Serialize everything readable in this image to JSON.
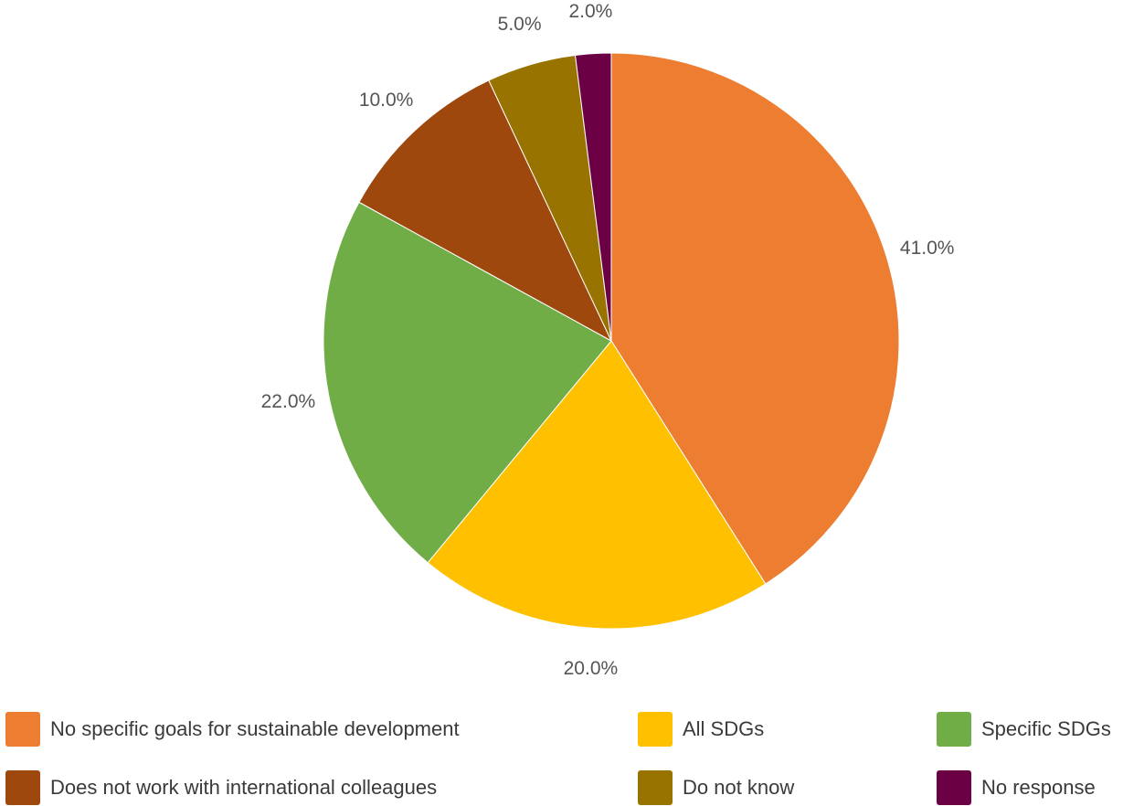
{
  "chart_data": {
    "type": "pie",
    "series": [
      {
        "name": "No specific goals for sustainable development",
        "value": 41.0,
        "label": "41.0%",
        "color": "#ED7D31"
      },
      {
        "name": "All SDGs",
        "value": 20.0,
        "label": "20.0%",
        "color": "#FFC000"
      },
      {
        "name": "Specific SDGs",
        "value": 22.0,
        "label": "22.0%",
        "color": "#70AD47"
      },
      {
        "name": "Does not work with international colleagues",
        "value": 10.0,
        "label": "10.0%",
        "color": "#9E480E"
      },
      {
        "name": "Do not know",
        "value": 5.0,
        "label": "5.0%",
        "color": "#997300"
      },
      {
        "name": "No response",
        "value": 2.0,
        "label": "2.0%",
        "color": "#6B0045"
      }
    ],
    "legend_position": "bottom",
    "start_angle": "12 o'clock",
    "direction": "clockwise"
  },
  "legend": {
    "items": [
      {
        "label": "No specific goals for sustainable development",
        "color": "#ED7D31"
      },
      {
        "label": "All SDGs",
        "color": "#FFC000"
      },
      {
        "label": "Specific SDGs",
        "color": "#70AD47"
      },
      {
        "label": "Does not work with international colleagues",
        "color": "#9E480E"
      },
      {
        "label": "Do not know",
        "color": "#997300"
      },
      {
        "label": "No response",
        "color": "#6B0045"
      }
    ]
  }
}
